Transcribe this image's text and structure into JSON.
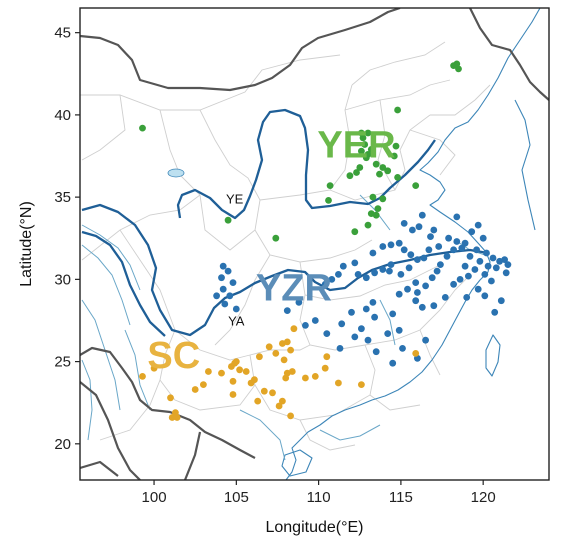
{
  "axes": {
    "xlabel": "Longitude(°E)",
    "ylabel": "Latitude(°N)",
    "xlim": [
      95.5,
      124
    ],
    "ylim": [
      17.8,
      46.5
    ],
    "xticks": [
      100,
      105,
      110,
      115,
      120
    ],
    "yticks": [
      20,
      25,
      30,
      35,
      40,
      45
    ]
  },
  "regions": [
    {
      "id": "yer",
      "label": "YER",
      "color": "#6ab84a",
      "lon": 112.3,
      "lat": 37.4
    },
    {
      "id": "yzr",
      "label": "YZR",
      "color": "#5b8db8",
      "lon": 108.5,
      "lat": 28.7
    },
    {
      "id": "sc",
      "label": "SC",
      "color": "#e8b340",
      "lon": 101.2,
      "lat": 24.6
    }
  ],
  "rivers": [
    {
      "id": "ye",
      "label": "YE",
      "lon": 104.9,
      "lat": 34.6
    },
    {
      "id": "ya",
      "label": "YA",
      "lon": 105.0,
      "lat": 27.2
    }
  ],
  "colors": {
    "yer_points": "#3aa03a",
    "yzr_points": "#2a72b0",
    "sc_points": "#e2a526"
  },
  "chart_data": {
    "type": "scatter",
    "series": [
      {
        "id": "YER",
        "color": "#3aa03a",
        "points": [
          [
            99.3,
            39.2
          ],
          [
            118.2,
            43.0
          ],
          [
            118.5,
            42.8
          ],
          [
            118.4,
            43.1
          ],
          [
            114.8,
            40.3
          ],
          [
            112.6,
            38.9
          ],
          [
            113.0,
            38.9
          ],
          [
            112.7,
            38.6
          ],
          [
            112.8,
            38.2
          ],
          [
            112.6,
            37.8
          ],
          [
            113.0,
            37.6
          ],
          [
            113.2,
            37.9
          ],
          [
            112.9,
            37.4
          ],
          [
            113.5,
            37.0
          ],
          [
            113.9,
            36.8
          ],
          [
            114.2,
            36.6
          ],
          [
            113.7,
            36.4
          ],
          [
            114.8,
            36.2
          ],
          [
            114.6,
            37.5
          ],
          [
            112.5,
            36.8
          ],
          [
            112.3,
            36.5
          ],
          [
            111.9,
            36.3
          ],
          [
            110.7,
            35.7
          ],
          [
            115.9,
            35.7
          ],
          [
            113.3,
            35.0
          ],
          [
            113.9,
            34.9
          ],
          [
            113.6,
            34.3
          ],
          [
            113.2,
            34.0
          ],
          [
            113.5,
            33.9
          ],
          [
            113.0,
            33.3
          ],
          [
            112.2,
            32.9
          ],
          [
            104.5,
            33.6
          ],
          [
            107.4,
            32.5
          ],
          [
            110.6,
            34.8
          ],
          [
            114.7,
            38.1
          ]
        ]
      },
      {
        "id": "YZR",
        "color": "#2a72b0",
        "points": [
          [
            104.2,
            30.8
          ],
          [
            104.5,
            30.5
          ],
          [
            104.1,
            30.1
          ],
          [
            104.8,
            29.8
          ],
          [
            104.2,
            29.4
          ],
          [
            104.6,
            29.0
          ],
          [
            103.8,
            29.0
          ],
          [
            104.3,
            28.5
          ],
          [
            105.0,
            28.2
          ],
          [
            112.4,
            30.3
          ],
          [
            112.9,
            30.1
          ],
          [
            113.4,
            30.4
          ],
          [
            113.9,
            30.6
          ],
          [
            114.3,
            30.5
          ],
          [
            114.4,
            30.9
          ],
          [
            115.0,
            30.3
          ],
          [
            115.5,
            30.7
          ],
          [
            115.9,
            29.8
          ],
          [
            115.4,
            29.4
          ],
          [
            114.9,
            29.1
          ],
          [
            116.0,
            29.2
          ],
          [
            116.5,
            29.6
          ],
          [
            116.9,
            30.1
          ],
          [
            117.2,
            30.5
          ],
          [
            117.4,
            30.9
          ],
          [
            117.8,
            31.4
          ],
          [
            118.2,
            31.8
          ],
          [
            118.7,
            31.9
          ],
          [
            118.9,
            32.2
          ],
          [
            118.4,
            32.3
          ],
          [
            117.9,
            32.5
          ],
          [
            117.3,
            32.0
          ],
          [
            116.7,
            31.8
          ],
          [
            116.4,
            31.3
          ],
          [
            116.0,
            31.2
          ],
          [
            115.6,
            31.5
          ],
          [
            115.2,
            31.8
          ],
          [
            114.9,
            32.2
          ],
          [
            114.4,
            32.1
          ],
          [
            113.9,
            32.0
          ],
          [
            113.3,
            31.6
          ],
          [
            112.2,
            31.0
          ],
          [
            111.5,
            30.8
          ],
          [
            111.2,
            30.3
          ],
          [
            110.8,
            30.0
          ],
          [
            110.4,
            29.7
          ],
          [
            112.9,
            28.2
          ],
          [
            113.3,
            28.6
          ],
          [
            112.0,
            28.0
          ],
          [
            111.4,
            27.3
          ],
          [
            112.6,
            27.0
          ],
          [
            113.4,
            27.7
          ],
          [
            114.5,
            27.9
          ],
          [
            115.9,
            28.7
          ],
          [
            116.3,
            28.3
          ],
          [
            117.0,
            28.4
          ],
          [
            117.7,
            28.9
          ],
          [
            118.2,
            29.7
          ],
          [
            119.1,
            30.2
          ],
          [
            119.5,
            30.6
          ],
          [
            120.1,
            30.3
          ],
          [
            120.3,
            30.8
          ],
          [
            119.8,
            31.1
          ],
          [
            119.2,
            31.4
          ],
          [
            120.6,
            31.3
          ],
          [
            120.2,
            31.6
          ],
          [
            119.6,
            31.8
          ],
          [
            121.0,
            31.1
          ],
          [
            121.3,
            31.2
          ],
          [
            121.5,
            30.9
          ],
          [
            120.8,
            30.7
          ],
          [
            121.4,
            30.4
          ],
          [
            119.7,
            29.4
          ],
          [
            120.5,
            29.9
          ],
          [
            115.2,
            33.4
          ],
          [
            116.3,
            33.9
          ],
          [
            116.1,
            33.2
          ],
          [
            117.0,
            33.0
          ],
          [
            115.7,
            33.0
          ],
          [
            116.8,
            32.6
          ],
          [
            112.2,
            26.5
          ],
          [
            113.0,
            26.3
          ],
          [
            114.2,
            26.7
          ],
          [
            114.9,
            26.9
          ],
          [
            113.5,
            25.6
          ],
          [
            115.1,
            25.8
          ],
          [
            116.0,
            25.2
          ],
          [
            114.5,
            24.9
          ],
          [
            111.3,
            25.8
          ],
          [
            110.5,
            26.7
          ],
          [
            109.8,
            27.5
          ],
          [
            109.2,
            27.2
          ],
          [
            108.8,
            28.6
          ],
          [
            108.1,
            28.1
          ],
          [
            119.0,
            28.9
          ],
          [
            118.6,
            30.0
          ],
          [
            120.1,
            29.0
          ],
          [
            121.1,
            28.7
          ],
          [
            120.7,
            28.0
          ],
          [
            116.5,
            26.3
          ],
          [
            118.4,
            33.8
          ],
          [
            119.3,
            32.9
          ],
          [
            120.0,
            32.5
          ],
          [
            119.7,
            33.3
          ],
          [
            118.9,
            30.8
          ]
        ]
      },
      {
        "id": "SC",
        "color": "#e2a526",
        "points": [
          [
            99.3,
            24.1
          ],
          [
            100.0,
            24.6
          ],
          [
            101.0,
            22.8
          ],
          [
            101.1,
            21.6
          ],
          [
            101.4,
            21.6
          ],
          [
            101.3,
            21.9
          ],
          [
            102.5,
            23.3
          ],
          [
            103.0,
            23.6
          ],
          [
            103.3,
            24.4
          ],
          [
            104.1,
            24.3
          ],
          [
            104.7,
            24.7
          ],
          [
            104.9,
            24.9
          ],
          [
            105.2,
            24.5
          ],
          [
            105.0,
            25.0
          ],
          [
            105.6,
            24.4
          ],
          [
            104.8,
            23.0
          ],
          [
            105.9,
            23.7
          ],
          [
            106.3,
            22.6
          ],
          [
            106.7,
            23.2
          ],
          [
            107.2,
            23.1
          ],
          [
            107.6,
            22.3
          ],
          [
            107.8,
            22.6
          ],
          [
            106.4,
            25.3
          ],
          [
            107.0,
            25.9
          ],
          [
            107.4,
            25.5
          ],
          [
            107.8,
            26.1
          ],
          [
            108.1,
            26.2
          ],
          [
            108.3,
            25.7
          ],
          [
            107.9,
            25.1
          ],
          [
            108.1,
            24.3
          ],
          [
            108.4,
            24.4
          ],
          [
            108.0,
            24.0
          ],
          [
            109.2,
            24.0
          ],
          [
            109.8,
            24.1
          ],
          [
            110.4,
            24.6
          ],
          [
            111.2,
            23.7
          ],
          [
            112.6,
            23.6
          ],
          [
            108.5,
            27.0
          ],
          [
            110.5,
            25.3
          ],
          [
            115.9,
            25.5
          ],
          [
            108.3,
            21.7
          ],
          [
            104.8,
            23.8
          ],
          [
            106.1,
            23.9
          ]
        ]
      }
    ]
  }
}
